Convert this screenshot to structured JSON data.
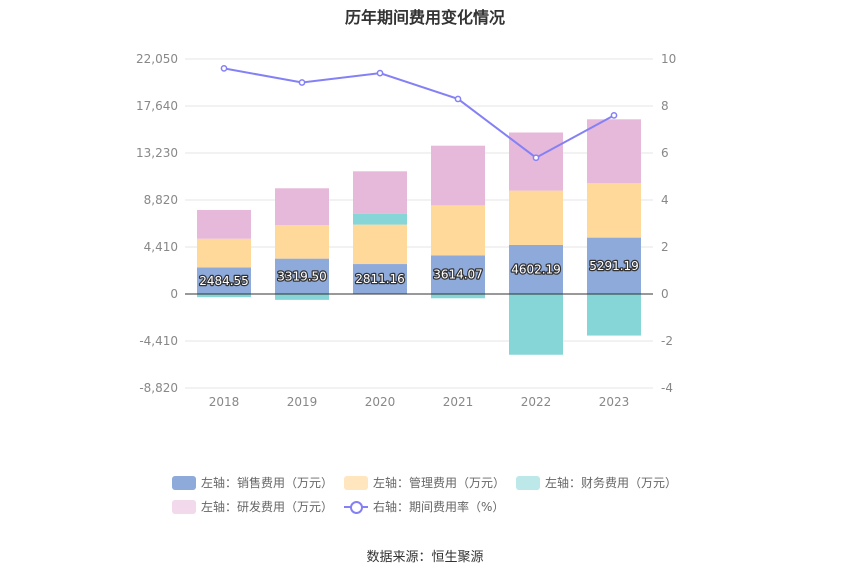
{
  "chart_data": {
    "type": "bar",
    "title": "历年期间费用变化情况",
    "categories": [
      "2018",
      "2019",
      "2020",
      "2021",
      "2022",
      "2023"
    ],
    "left_axis": {
      "ticks": [
        -8820,
        -4410,
        0,
        4410,
        8820,
        13230,
        17640,
        22050
      ],
      "tick_labels": [
        "-8,820",
        "-4,410",
        "0",
        "4,410",
        "8,820",
        "13,230",
        "17,640",
        "22,050"
      ],
      "ylim": [
        -8820,
        22050
      ]
    },
    "right_axis": {
      "ticks": [
        -4,
        -2,
        0,
        2,
        4,
        6,
        8,
        10
      ],
      "tick_labels": [
        "-4",
        "-2",
        "0",
        "2",
        "4",
        "6",
        "8",
        "10"
      ],
      "ylim": [
        -4,
        10
      ]
    },
    "grid": true,
    "legend_position": "bottom",
    "series": [
      {
        "name": "左轴：销售费用（万元）",
        "axis": "left",
        "kind": "bar",
        "color": "#8eaadb",
        "legend_color": "#8eaadb",
        "values": [
          2484.55,
          3319.5,
          2811.16,
          3614.07,
          4602.19,
          5291.19
        ],
        "labels": [
          "2484.55",
          "3319.50",
          "2811.16",
          "3614.07",
          "4602.19",
          "5291.19"
        ]
      },
      {
        "name": "左轴：管理费用（万元）",
        "axis": "left",
        "kind": "bar",
        "color": "#ffd99a",
        "legend_color": "#ffe6bf",
        "values": [
          2700,
          3150,
          3700,
          4700,
          5100,
          5100
        ]
      },
      {
        "name": "左轴：财务费用（万元）",
        "axis": "left",
        "kind": "bar",
        "color": "#86d6d8",
        "legend_color": "#bde8ea",
        "values": [
          -300,
          -550,
          1000,
          -400,
          -5700,
          -3900
        ]
      },
      {
        "name": "左轴：研发费用（万元）",
        "axis": "left",
        "kind": "bar",
        "color": "#e6b8da",
        "legend_color": "#f2d9ec",
        "values": [
          2700,
          3450,
          4000,
          5600,
          5450,
          6000
        ]
      },
      {
        "name": "右轴：期间费用率（%）",
        "axis": "right",
        "kind": "line",
        "color": "#8480f5",
        "legend_color": "#8480f5",
        "values": [
          9.6,
          9.0,
          9.4,
          8.3,
          5.8,
          7.6
        ]
      }
    ]
  },
  "source": "数据来源：恒生聚源"
}
